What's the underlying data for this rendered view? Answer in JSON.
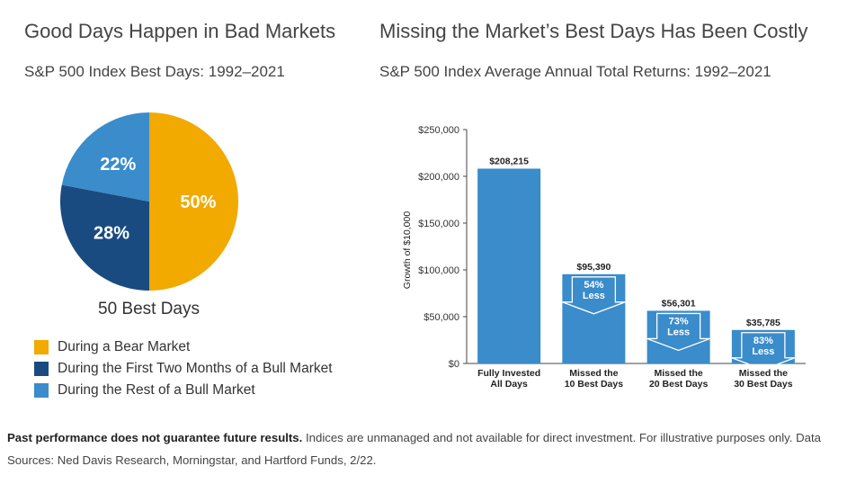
{
  "left": {
    "title": "Good Days Happen in Bad Markets",
    "subtitle": "S&P 500 Index Best Days: 1992–2021",
    "center_caption": "50 Best Days"
  },
  "right": {
    "title": "Missing the Market’s Best Days Has Been Costly",
    "subtitle": "S&P 500 Index Average Annual Total Returns: 1992–2021"
  },
  "footnote": {
    "bold": "Past performance does not guarantee future results.",
    "text": "Indices are unmanaged and not available for direct investment. For illustrative purposes only. Data Sources: Ned Davis Research, Morningstar, and Hartford Funds, 2/22."
  },
  "chart_data": [
    {
      "type": "pie",
      "slices": [
        {
          "label": "During a Bear Market",
          "value": 50,
          "display": "50%",
          "color": "#f2a900"
        },
        {
          "label": "During the First Two Months of a Bull Market",
          "value": 28,
          "display": "28%",
          "color": "#1a4b80"
        },
        {
          "label": "During the Rest of a Bull Market",
          "value": 22,
          "display": "22%",
          "color": "#3a8ccb"
        }
      ],
      "legend": "bottom"
    },
    {
      "type": "bar",
      "categories": [
        [
          "Fully Invested",
          "All Days"
        ],
        [
          "Missed the",
          "10 Best Days"
        ],
        [
          "Missed the",
          "20 Best Days"
        ],
        [
          "Missed the",
          "30 Best Days"
        ]
      ],
      "values": [
        208215,
        95390,
        56301,
        35785
      ],
      "value_labels": [
        "$208,215",
        "$95,390",
        "$56,301",
        "$35,785"
      ],
      "annotations": [
        null,
        [
          "54%",
          "Less"
        ],
        [
          "73%",
          "Less"
        ],
        [
          "83%",
          "Less"
        ]
      ],
      "ylabel": "Growth of $10,000",
      "ylim": [
        0,
        250000
      ],
      "yticks": [
        0,
        50000,
        100000,
        150000,
        200000,
        250000
      ],
      "ytick_labels": [
        "$0",
        "$50,000",
        "$100,000",
        "$150,000",
        "$200,000",
        "$250,000"
      ],
      "bar_color": "#3a8ccb",
      "grid": false
    }
  ]
}
